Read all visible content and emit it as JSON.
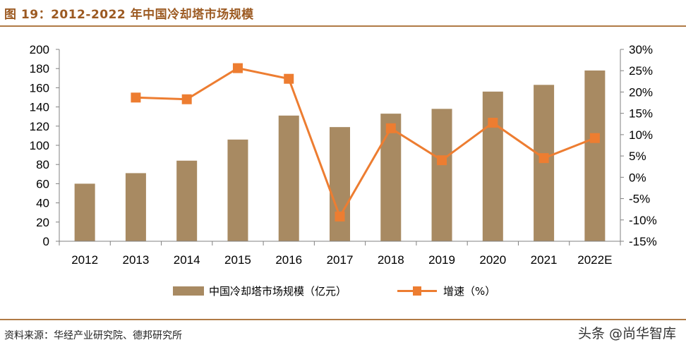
{
  "figure": {
    "title": "图 19：2012-2022 年中国冷却塔市场规模",
    "source": "资料来源：华经产业研究院、德邦研究所",
    "watermark": "头条 @尚华智库"
  },
  "chart_data": {
    "type": "bar",
    "categories": [
      "2012",
      "2013",
      "2014",
      "2015",
      "2016",
      "2017",
      "2018",
      "2019",
      "2020",
      "2021",
      "2022E"
    ],
    "series": [
      {
        "name": "中国冷却塔市场规模（亿元）",
        "type": "bar",
        "axis": "left",
        "color": "#a88a62",
        "values": [
          60,
          71,
          84,
          106,
          131,
          119,
          133,
          138,
          156,
          163,
          178
        ]
      },
      {
        "name": "增速（%）",
        "type": "line",
        "axis": "right",
        "color": "#ed7d31",
        "values": [
          null,
          18.7,
          18.3,
          25.6,
          23.1,
          -9.2,
          11.5,
          4.0,
          12.8,
          4.5,
          9.2
        ]
      }
    ],
    "y_left": {
      "min": 0,
      "max": 200,
      "step": 20,
      "ticks": [
        "0",
        "20",
        "40",
        "60",
        "80",
        "100",
        "120",
        "140",
        "160",
        "180",
        "200"
      ]
    },
    "y_right": {
      "min": -15,
      "max": 30,
      "step": 5,
      "ticks": [
        "-15%",
        "-10%",
        "-5%",
        "0%",
        "5%",
        "10%",
        "15%",
        "20%",
        "25%",
        "30%"
      ]
    },
    "grid": false,
    "legend_position": "bottom"
  }
}
